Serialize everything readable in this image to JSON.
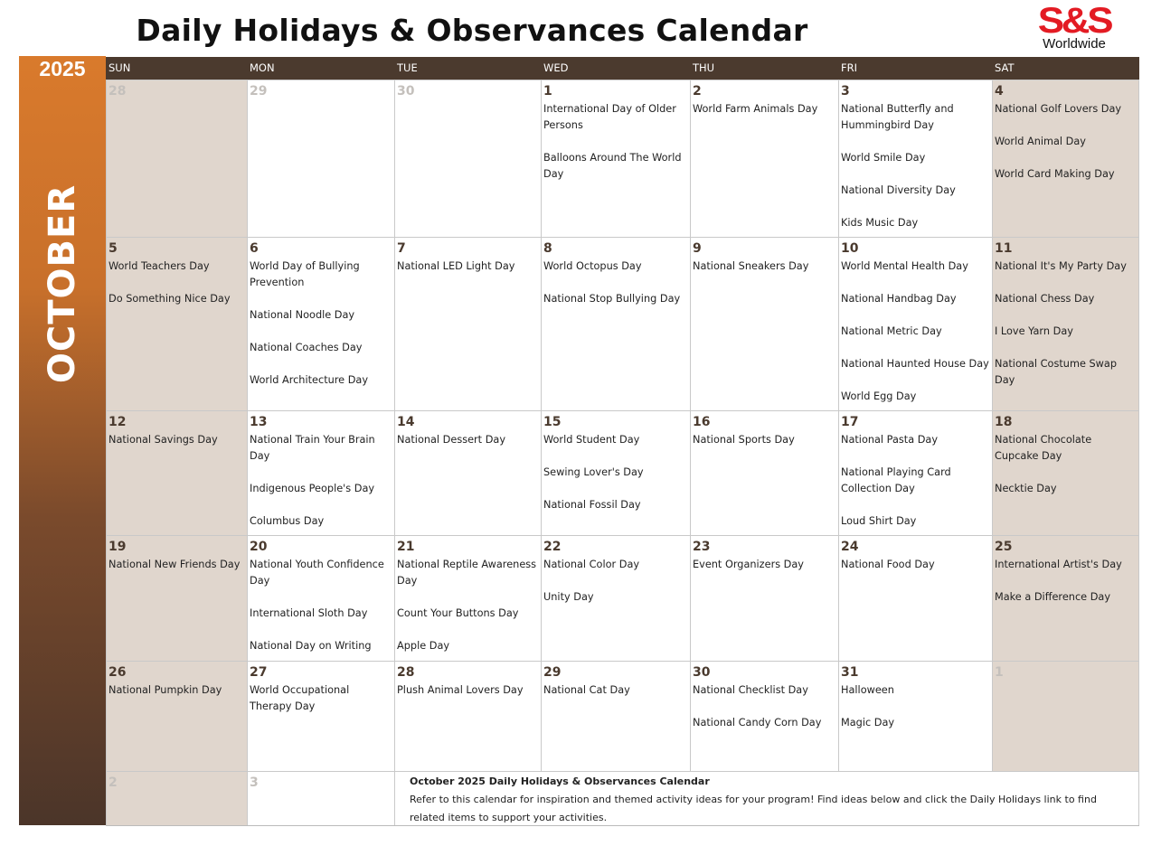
{
  "title": "Daily Holidays & Observances Calendar",
  "logo": {
    "mark": "S&S",
    "sub": "Worldwide"
  },
  "year": "2025",
  "month": "OCTOBER",
  "weekdays": [
    "SUN",
    "MON",
    "TUE",
    "WED",
    "THU",
    "FRI",
    "SAT"
  ],
  "weeks": [
    [
      {
        "day": "28",
        "other": true,
        "events": []
      },
      {
        "day": "29",
        "other": true,
        "events": []
      },
      {
        "day": "30",
        "other": true,
        "events": []
      },
      {
        "day": "1",
        "events": [
          "International Day of Older Persons",
          "Balloons Around The World Day"
        ]
      },
      {
        "day": "2",
        "events": [
          "World Farm Animals Day"
        ]
      },
      {
        "day": "3",
        "events": [
          "National Butterfly and Hummingbird Day",
          "World Smile Day",
          "National Diversity Day",
          "Kids Music Day"
        ]
      },
      {
        "day": "4",
        "events": [
          "National Golf Lovers Day",
          "World Animal Day",
          "World Card Making Day"
        ]
      }
    ],
    [
      {
        "day": "5",
        "events": [
          "World Teachers Day",
          "Do Something Nice Day"
        ]
      },
      {
        "day": "6",
        "events": [
          "World Day of Bullying Prevention",
          "National Noodle Day",
          "National Coaches Day",
          "World Architecture Day"
        ]
      },
      {
        "day": "7",
        "events": [
          "National LED Light Day"
        ]
      },
      {
        "day": "8",
        "events": [
          "World Octopus Day",
          "National Stop Bullying Day"
        ]
      },
      {
        "day": "9",
        "events": [
          "National Sneakers Day"
        ]
      },
      {
        "day": "10",
        "events": [
          "World Mental Health Day",
          "National Handbag Day",
          "National Metric Day",
          "National Haunted House Day",
          "World Egg Day"
        ]
      },
      {
        "day": "11",
        "events": [
          "National It's My Party Day",
          "National Chess Day",
          "I Love Yarn Day",
          "National Costume Swap Day"
        ]
      }
    ],
    [
      {
        "day": "12",
        "events": [
          "National Savings Day"
        ]
      },
      {
        "day": "13",
        "events": [
          "National Train Your Brain Day",
          "Indigenous People's Day",
          "Columbus Day"
        ]
      },
      {
        "day": "14",
        "events": [
          "National Dessert Day"
        ]
      },
      {
        "day": "15",
        "events": [
          "World Student Day",
          "Sewing Lover's Day",
          "National Fossil Day"
        ]
      },
      {
        "day": "16",
        "events": [
          "National Sports Day"
        ]
      },
      {
        "day": "17",
        "events": [
          "National Pasta Day",
          "National Playing Card Collection Day",
          "Loud Shirt Day"
        ]
      },
      {
        "day": "18",
        "events": [
          "National Chocolate Cupcake Day",
          "Necktie Day"
        ]
      }
    ],
    [
      {
        "day": "19",
        "events": [
          "National New Friends Day"
        ]
      },
      {
        "day": "20",
        "events": [
          "National Youth Confidence Day",
          "International Sloth Day",
          "National Day on Writing"
        ]
      },
      {
        "day": "21",
        "events": [
          "National Reptile Awareness Day",
          "Count Your Buttons Day",
          "Apple Day"
        ]
      },
      {
        "day": "22",
        "events": [
          "National Color Day",
          "Unity Day"
        ]
      },
      {
        "day": "23",
        "events": [
          "Event Organizers Day"
        ]
      },
      {
        "day": "24",
        "events": [
          "National Food Day"
        ]
      },
      {
        "day": "25",
        "events": [
          "International Artist's Day",
          "Make a Difference Day"
        ]
      }
    ],
    [
      {
        "day": "26",
        "events": [
          "National Pumpkin Day"
        ]
      },
      {
        "day": "27",
        "events": [
          "World Occupational Therapy Day"
        ]
      },
      {
        "day": "28",
        "events": [
          "Plush Animal Lovers Day"
        ]
      },
      {
        "day": "29",
        "events": [
          "National Cat Day"
        ]
      },
      {
        "day": "30",
        "events": [
          "National Checklist Day",
          "National Candy Corn Day"
        ]
      },
      {
        "day": "31",
        "events": [
          "Halloween",
          "Magic Day"
        ]
      },
      {
        "day": "1",
        "other": true,
        "events": []
      }
    ],
    [
      {
        "day": "2",
        "other": true,
        "events": []
      },
      {
        "day": "3",
        "other": true,
        "events": []
      }
    ]
  ],
  "note": {
    "title": "October 2025 Daily Holidays & Observances Calendar",
    "text": "Refer to this calendar for inspiration and themed activity ideas for your program! Find ideas below and click the Daily Holidays link to find related items to support your activities."
  },
  "colors": {
    "header": "#4b3a2e",
    "weekend": "#e0d6cd",
    "accent_top": "#d97a2c",
    "accent_bottom": "#4b3529",
    "logo": "#e31b23"
  }
}
